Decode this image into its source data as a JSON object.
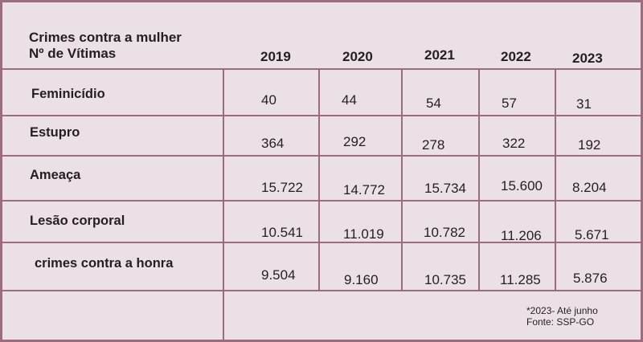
{
  "table": {
    "header_title_line1": "Crimes contra a mulher",
    "header_title_line2": "Nº de Vítimas",
    "years": [
      "2019",
      "2020",
      "2021",
      "2022",
      "2023"
    ],
    "rows": [
      {
        "label": "Feminicídio",
        "values": [
          "40",
          "44",
          "54",
          "57",
          "31"
        ]
      },
      {
        "label": "Estupro",
        "values": [
          "364",
          "292",
          "278",
          "322",
          "192"
        ]
      },
      {
        "label": "Ameaça",
        "values": [
          "15.722",
          "14.772",
          "15.734",
          "15.600",
          "8.204"
        ]
      },
      {
        "label": "Lesão corporal",
        "values": [
          "10.541",
          "11.019",
          "10.782",
          "11.206",
          "5.671"
        ]
      },
      {
        "label": "crimes contra a honra",
        "values": [
          "9.504",
          "9.160",
          "10.735",
          "11.285",
          "5.876"
        ]
      }
    ],
    "footnote": "*2023- Até junho",
    "source": "Fonte: SSP-GO"
  }
}
